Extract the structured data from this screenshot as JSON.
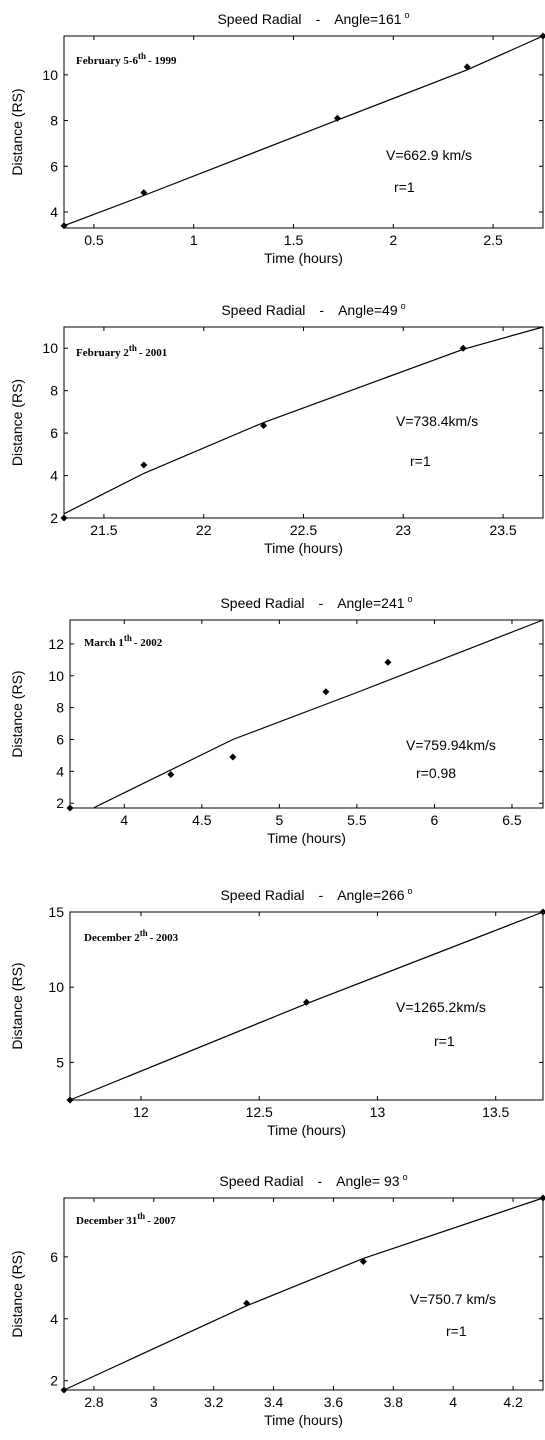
{
  "chart_data": [
    {
      "type": "scatter",
      "title_quantity": "Speed Radial",
      "title_sep": "-",
      "title_angle": "Angle=161",
      "title_degree": "o",
      "date_main": "February 5-6",
      "date_sup": "th",
      "date_tail": "- 1999",
      "xlabel": "Time (hours)",
      "ylabel": "Distance (RS)",
      "xlim": [
        0.35,
        2.75
      ],
      "ylim": [
        3.3,
        11.7
      ],
      "xticks": [
        {
          "v": 0.5,
          "label": "0.5"
        },
        {
          "v": 1,
          "label": "1"
        },
        {
          "v": 1.5,
          "label": "1.5"
        },
        {
          "v": 2,
          "label": "2"
        },
        {
          "v": 2.5,
          "label": "2.5"
        }
      ],
      "yticks": [
        {
          "v": 4,
          "label": "4"
        },
        {
          "v": 6,
          "label": "6"
        },
        {
          "v": 8,
          "label": "8"
        },
        {
          "v": 10,
          "label": "10"
        }
      ],
      "points": [
        [
          0.35,
          3.4
        ],
        [
          0.75,
          4.85
        ],
        [
          1.72,
          8.1
        ],
        [
          2.37,
          10.35
        ],
        [
          2.75,
          11.7
        ]
      ],
      "fit": [
        [
          0.35,
          3.4
        ],
        [
          0.75,
          4.72
        ],
        [
          1.72,
          8.02
        ],
        [
          2.37,
          10.22
        ],
        [
          2.75,
          11.7
        ]
      ],
      "velocity": "V=662.9  km/s",
      "r": "r=1"
    },
    {
      "type": "scatter",
      "title_quantity": "Speed Radial",
      "title_sep": "-",
      "title_angle": "Angle=49",
      "title_degree": "o",
      "date_main": "February 2",
      "date_sup": "th",
      "date_tail": "- 2001",
      "xlabel": "Time (hours)",
      "ylabel": "Distance (RS)",
      "xlim": [
        21.3,
        23.7
      ],
      "ylim": [
        2.0,
        11.0
      ],
      "xticks": [
        {
          "v": 21.5,
          "label": "21.5"
        },
        {
          "v": 22,
          "label": "22"
        },
        {
          "v": 22.5,
          "label": "22.5"
        },
        {
          "v": 23,
          "label": "23"
        },
        {
          "v": 23.5,
          "label": "23.5"
        }
      ],
      "yticks": [
        {
          "v": 2,
          "label": "2"
        },
        {
          "v": 4,
          "label": "4"
        },
        {
          "v": 6,
          "label": "6"
        },
        {
          "v": 8,
          "label": "8"
        },
        {
          "v": 10,
          "label": "10"
        }
      ],
      "points": [
        [
          21.3,
          2.0
        ],
        [
          21.7,
          4.5
        ],
        [
          22.3,
          6.35
        ],
        [
          23.3,
          10.0
        ]
      ],
      "fit": [
        [
          21.3,
          2.2
        ],
        [
          21.7,
          4.1
        ],
        [
          22.3,
          6.5
        ],
        [
          23.3,
          9.95
        ],
        [
          23.7,
          11.0
        ]
      ],
      "velocity": "V=738.4km/s",
      "r": "r=1"
    },
    {
      "type": "scatter",
      "title_quantity": "Speed Radial",
      "title_sep": "-",
      "title_angle": "Angle=241",
      "title_degree": "o",
      "date_main": "March 1",
      "date_sup": "th",
      "date_tail": "- 2002",
      "xlabel": "Time (hours)",
      "ylabel": "Distance (RS)",
      "xlim": [
        3.65,
        6.7
      ],
      "ylim": [
        1.7,
        13.5
      ],
      "xticks": [
        {
          "v": 4,
          "label": "4"
        },
        {
          "v": 4.5,
          "label": "4.5"
        },
        {
          "v": 5,
          "label": "5"
        },
        {
          "v": 5.5,
          "label": "5.5"
        },
        {
          "v": 6,
          "label": "6"
        },
        {
          "v": 6.5,
          "label": "6.5"
        }
      ],
      "yticks": [
        {
          "v": 2,
          "label": "2"
        },
        {
          "v": 4,
          "label": "4"
        },
        {
          "v": 6,
          "label": "6"
        },
        {
          "v": 8,
          "label": "8"
        },
        {
          "v": 10,
          "label": "10"
        },
        {
          "v": 12,
          "label": "12"
        }
      ],
      "points": [
        [
          3.65,
          1.7
        ],
        [
          4.3,
          3.8
        ],
        [
          4.7,
          4.9
        ],
        [
          5.3,
          9.0
        ],
        [
          5.7,
          10.85
        ]
      ],
      "fit": [
        [
          3.8,
          1.7
        ],
        [
          4.7,
          6.0
        ],
        [
          5.5,
          8.95
        ],
        [
          6.7,
          13.5
        ]
      ],
      "velocity": "V=759.94km/s",
      "r": "r=0.98"
    },
    {
      "type": "scatter",
      "title_quantity": "Speed Radial",
      "title_sep": "-",
      "title_angle": "Angle=266",
      "title_degree": "o",
      "date_main": "December 2",
      "date_sup": "th",
      "date_tail": "- 2003",
      "xlabel": "Time (hours)",
      "ylabel": "Distance (RS)",
      "xlim": [
        11.7,
        13.7
      ],
      "ylim": [
        2.5,
        15.0
      ],
      "xticks": [
        {
          "v": 12,
          "label": "12"
        },
        {
          "v": 12.5,
          "label": "12.5"
        },
        {
          "v": 13,
          "label": "13"
        },
        {
          "v": 13.5,
          "label": "13.5"
        }
      ],
      "yticks": [
        {
          "v": 5,
          "label": "5"
        },
        {
          "v": 10,
          "label": "10"
        },
        {
          "v": 15,
          "label": "15"
        }
      ],
      "points": [
        [
          11.7,
          2.5
        ],
        [
          12.7,
          9.0
        ],
        [
          13.7,
          15.0
        ]
      ],
      "fit": [
        [
          11.7,
          2.5
        ],
        [
          12.7,
          8.9
        ],
        [
          13.7,
          15.0
        ]
      ],
      "velocity": "V=1265.2km/s",
      "r": "r=1"
    },
    {
      "type": "scatter",
      "title_quantity": "Speed Radial",
      "title_sep": "-",
      "title_angle": "Angle= 93",
      "title_degree": "o",
      "date_main": "December 31",
      "date_sup": "th",
      "date_tail": "- 2007",
      "xlabel": "Time (hours)",
      "ylabel": "Distance (RS)",
      "xlim": [
        2.7,
        4.3
      ],
      "ylim": [
        1.7,
        7.9
      ],
      "xticks": [
        {
          "v": 2.8,
          "label": "2.8"
        },
        {
          "v": 3.0,
          "label": "3"
        },
        {
          "v": 3.2,
          "label": "3.2"
        },
        {
          "v": 3.4,
          "label": "3.4"
        },
        {
          "v": 3.6,
          "label": "3.6"
        },
        {
          "v": 3.8,
          "label": "3.8"
        },
        {
          "v": 4.0,
          "label": "4"
        },
        {
          "v": 4.2,
          "label": "4.2"
        }
      ],
      "yticks": [
        {
          "v": 2,
          "label": "2"
        },
        {
          "v": 4,
          "label": "4"
        },
        {
          "v": 6,
          "label": "6"
        }
      ],
      "points": [
        [
          2.7,
          1.7
        ],
        [
          3.31,
          4.5
        ],
        [
          3.7,
          5.85
        ],
        [
          4.3,
          7.9
        ]
      ],
      "fit": [
        [
          2.7,
          1.7
        ],
        [
          3.31,
          4.42
        ],
        [
          3.7,
          5.95
        ],
        [
          4.3,
          7.9
        ]
      ],
      "velocity": "V=750.7  km/s",
      "r": "r=1"
    }
  ]
}
